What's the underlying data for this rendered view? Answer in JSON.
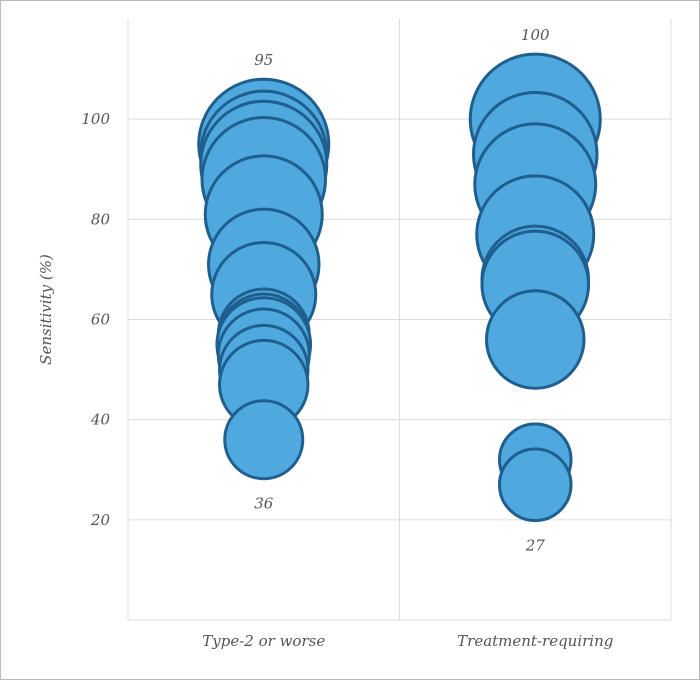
{
  "chart_data": {
    "type": "bubble",
    "title": "",
    "ylabel": "Sensitivity (%)",
    "xlabel": "",
    "ylim": [
      0,
      120
    ],
    "yticks": [
      20,
      40,
      60,
      80,
      100
    ],
    "grid": true,
    "legend": "none",
    "colors": {
      "fill": "#4FA8DE",
      "stroke": "#1F5F8F",
      "grid": "#dcdcdc",
      "text": "#555555"
    },
    "categories": [
      "Type-2 or worse",
      "Treatment-requiring"
    ],
    "series": [
      {
        "category": "Type-2 or worse",
        "points": [
          {
            "y": 95,
            "size": 1.0
          },
          {
            "y": 93,
            "size": 0.97
          },
          {
            "y": 91,
            "size": 0.97
          },
          {
            "y": 88,
            "size": 0.95
          },
          {
            "y": 81,
            "size": 0.9
          },
          {
            "y": 71,
            "size": 0.85
          },
          {
            "y": 65,
            "size": 0.8
          },
          {
            "y": 57,
            "size": 0.7
          },
          {
            "y": 56,
            "size": 0.7
          },
          {
            "y": 55,
            "size": 0.72
          },
          {
            "y": 53,
            "size": 0.7
          },
          {
            "y": 50,
            "size": 0.68
          },
          {
            "y": 47,
            "size": 0.68
          },
          {
            "y": 36,
            "size": 0.6
          }
        ],
        "max_label": "95",
        "min_label": "36"
      },
      {
        "category": "Treatment-requiring",
        "points": [
          {
            "y": 100,
            "size": 1.0
          },
          {
            "y": 93,
            "size": 0.95
          },
          {
            "y": 87,
            "size": 0.93
          },
          {
            "y": 77,
            "size": 0.9
          },
          {
            "y": 68,
            "size": 0.82
          },
          {
            "y": 67,
            "size": 0.82
          },
          {
            "y": 56,
            "size": 0.75
          },
          {
            "y": 32,
            "size": 0.55
          },
          {
            "y": 27,
            "size": 0.55
          }
        ],
        "max_label": "100",
        "min_label": "27"
      }
    ]
  }
}
